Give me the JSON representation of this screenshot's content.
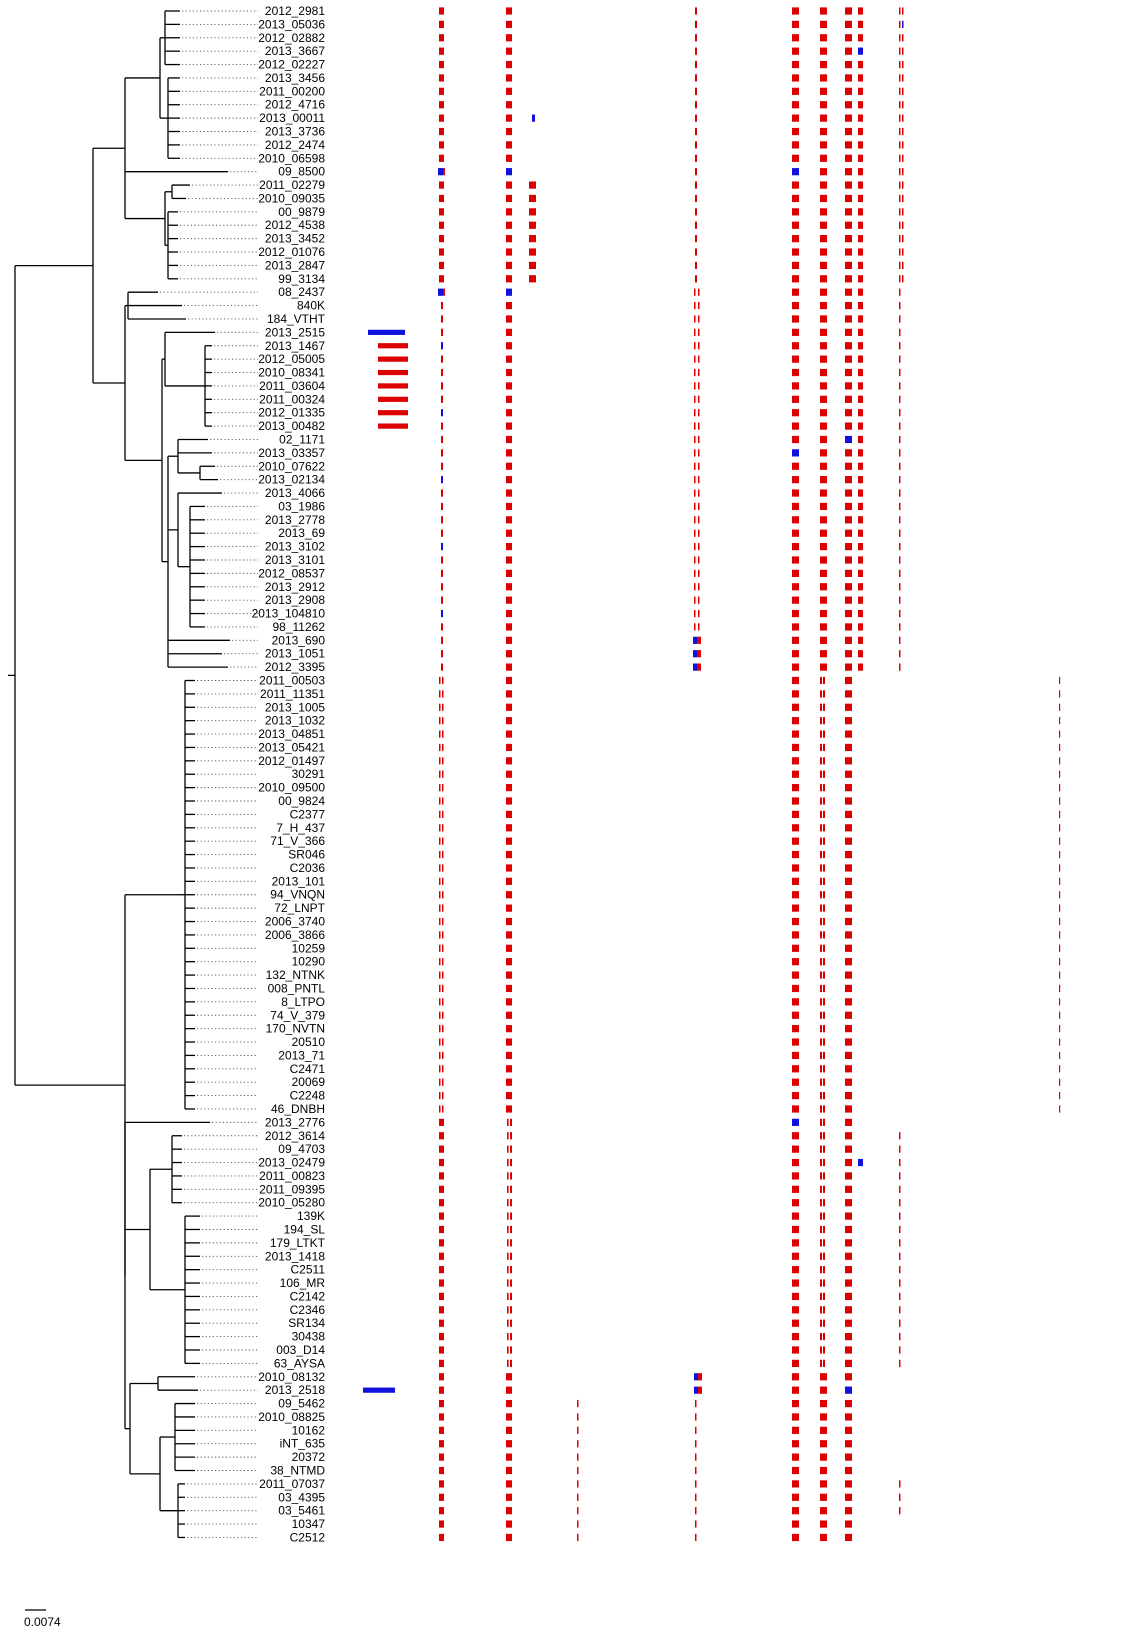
{
  "tree": {
    "tips": [
      "2012_2981",
      "2013_05036",
      "2012_02882",
      "2013_3667",
      "2012_02227",
      "2013_3456",
      "2011_00200",
      "2012_4716",
      "2013_00011",
      "2013_3736",
      "2012_2474",
      "2010_06598",
      "09_8500",
      "2011_02279",
      "2010_09035",
      "00_9879",
      "2012_4538",
      "2013_3452",
      "2012_01076",
      "2013_2847",
      "99_3134",
      "08_2437",
      "840K",
      "184_VTHT",
      "2013_2515",
      "2013_1467",
      "2012_05005",
      "2010_08341",
      "2011_03604",
      "2011_00324",
      "2012_01335",
      "2013_00482",
      "02_1171",
      "2013_03357",
      "2010_07622",
      "2013_02134",
      "2013_4066",
      "03_1986",
      "2013_2778",
      "2013_69",
      "2013_3102",
      "2013_3101",
      "2012_08537",
      "2013_2912",
      "2013_2908",
      "2013_104810",
      "98_11262",
      "2013_690",
      "2013_1051",
      "2012_3395",
      "2011_00503",
      "2011_11351",
      "2013_1005",
      "2013_1032",
      "2013_04851",
      "2013_05421",
      "2012_01497",
      "30291",
      "2010_09500",
      "00_9824",
      "C2377",
      "7_H_437",
      "71_V_366",
      "SR046",
      "C2036",
      "2013_101",
      "94_VNQN",
      "72_LNPT",
      "2006_3740",
      "2006_3866",
      "10259",
      "10290",
      "132_NTNK",
      "008_PNTL",
      "8_LTPO",
      "74_V_379",
      "170_NVTN",
      "20510",
      "2013_71",
      "C2471",
      "20069",
      "C2248",
      "46_DNBH",
      "2013_2776",
      "2012_3614",
      "09_4703",
      "2013_02479",
      "2011_00823",
      "2011_09395",
      "2010_05280",
      "139K",
      "194_SL",
      "179_LTKT",
      "2013_1418",
      "C2511",
      "106_MR",
      "C2142",
      "C2346",
      "SR134",
      "30438",
      "003_D14",
      "63_AYSA",
      "2010_08132",
      "2013_2518",
      "09_5462",
      "2010_08825",
      "10162",
      "iNT_635",
      "20372",
      "38_NTMD",
      "2011_07037",
      "03_4395",
      "03_5461",
      "10347",
      "C2512"
    ],
    "scale_bar": {
      "label": "0.0074"
    }
  },
  "annotations": {
    "colors": {
      "red": "#dd0000",
      "blue": "#1111dd"
    },
    "side_bars": [
      {
        "tip": "2013_2515",
        "color": "blue"
      },
      {
        "tip": "2013_1467",
        "color": "red"
      },
      {
        "tip": "2012_05005",
        "color": "red"
      },
      {
        "tip": "2010_08341",
        "color": "red"
      },
      {
        "tip": "2011_03604",
        "color": "red"
      },
      {
        "tip": "2011_00324",
        "color": "red"
      },
      {
        "tip": "2012_01335",
        "color": "red"
      },
      {
        "tip": "2013_00482",
        "color": "red"
      },
      {
        "tip": "2013_2518",
        "color": "blue"
      }
    ]
  }
}
